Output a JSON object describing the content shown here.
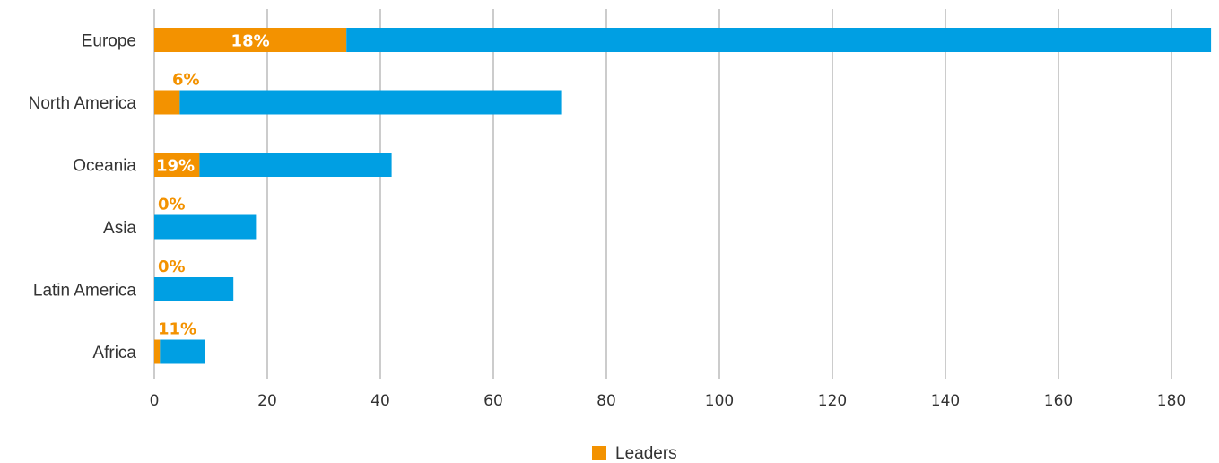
{
  "chart_data": {
    "type": "bar",
    "orientation": "horizontal",
    "stacked": true,
    "categories": [
      "Europe",
      "North America",
      "Oceania",
      "Asia",
      "Latin America",
      "Africa"
    ],
    "series": [
      {
        "name": "Leaders",
        "color": "#f39200",
        "values": [
          34,
          4.5,
          8,
          0,
          0,
          1
        ]
      },
      {
        "color": "#009fe3",
        "values": [
          153,
          67.5,
          34,
          18,
          14,
          8
        ]
      }
    ],
    "totals": [
      187,
      72,
      42,
      18,
      14,
      9
    ],
    "data_labels": [
      "18%",
      "6%",
      "19%",
      "0%",
      "0%",
      "11%"
    ],
    "xticks": [
      "0",
      "20",
      "40",
      "60",
      "80",
      "100",
      "120",
      "140",
      "160",
      "180"
    ],
    "xlim": [
      0,
      187
    ],
    "grid": "vertical",
    "legend": {
      "position": "bottom-center",
      "entries": [
        "Leaders"
      ]
    },
    "title": "",
    "xlabel": "",
    "ylabel": ""
  }
}
